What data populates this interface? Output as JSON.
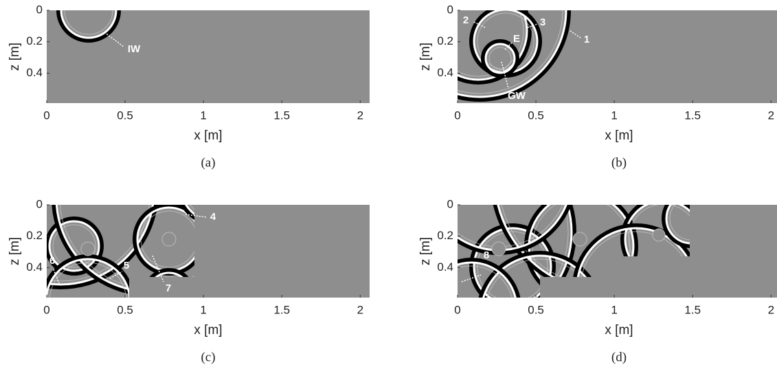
{
  "axes": {
    "xlabel": "x [m]",
    "ylabel": "z [m]",
    "xlim": [
      0,
      2.06
    ],
    "ylim": [
      0,
      0.59
    ],
    "xticks": [
      0,
      0.5,
      1,
      1.5,
      2
    ],
    "yticks": [
      0,
      0.2,
      0.4
    ]
  },
  "panels": [
    {
      "caption": "(a)",
      "annotations": [
        "IW"
      ]
    },
    {
      "caption": "(b)",
      "annotations": [
        "2",
        "3",
        "E",
        "1",
        "GW"
      ]
    },
    {
      "caption": "(c)",
      "annotations": [
        "4",
        "5",
        "6",
        "7"
      ]
    },
    {
      "caption": "(d)",
      "annotations": [
        "8"
      ]
    }
  ]
}
